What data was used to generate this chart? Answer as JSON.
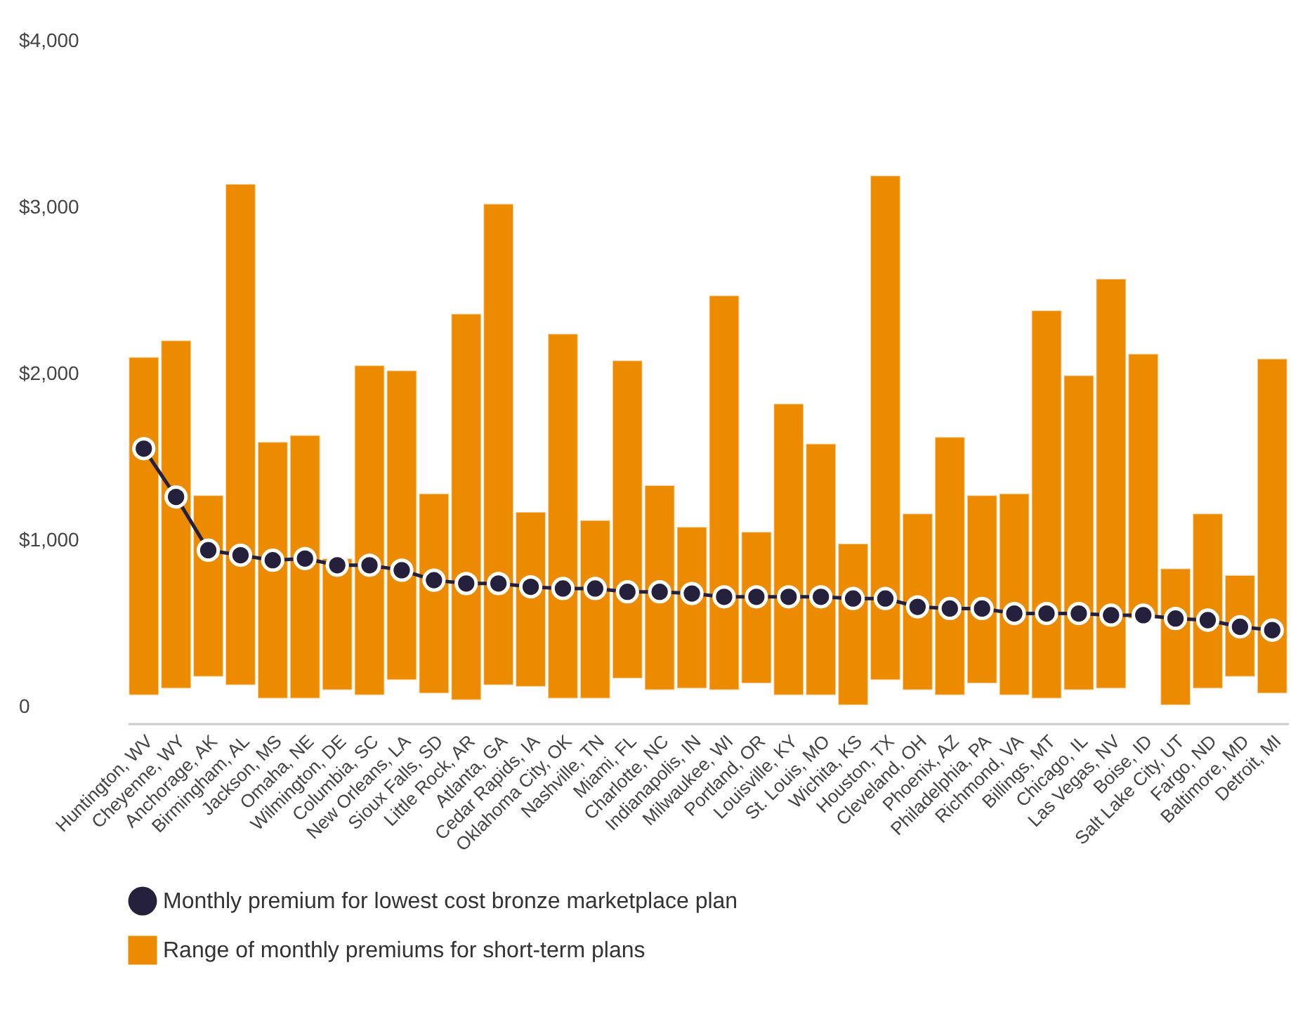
{
  "chart_data": {
    "type": "bar",
    "categories": [
      "Huntington, WV",
      "Cheyenne, WY",
      "Anchorage, AK",
      "Birmingham, AL",
      "Jackson, MS",
      "Omaha, NE",
      "Wilmington, DE",
      "Columbia, SC",
      "New Orleans, LA",
      "Sioux Falls, SD",
      "Little Rock, AR",
      "Atlanta, GA",
      "Cedar Rapids, IA",
      "Oklahoma City, OK",
      "Nashville, TN",
      "Miami, FL",
      "Charlotte, NC",
      "Indianapolis, IN",
      "Milwaukee, WI",
      "Portland, OR",
      "Louisville, KY",
      "St. Louis, MO",
      "Wichita, KS",
      "Houston, TX",
      "Cleveland, OH",
      "Phoenix, AZ",
      "Philadelphia, PA",
      "Richmond, VA",
      "Billings, MT",
      "Chicago, IL",
      "Las Vegas, NV",
      "Boise, ID",
      "Salt Lake City, UT",
      "Fargo, ND",
      "Baltimore, MD",
      "Detroit, MI"
    ],
    "series": [
      {
        "name": "Monthly premium for lowest cost bronze marketplace plan",
        "type": "line",
        "color": "#25213d",
        "values": [
          1550,
          1260,
          940,
          910,
          880,
          890,
          850,
          850,
          820,
          760,
          740,
          740,
          720,
          710,
          710,
          690,
          690,
          680,
          660,
          660,
          660,
          660,
          650,
          650,
          600,
          590,
          590,
          560,
          560,
          560,
          550,
          550,
          530,
          520,
          480,
          460
        ]
      },
      {
        "name": "Range of monthly premiums for short-term plans",
        "color": "#ec8a00",
        "base": [
          70,
          110,
          180,
          130,
          50,
          50,
          100,
          70,
          160,
          80,
          40,
          130,
          120,
          50,
          50,
          170,
          100,
          110,
          100,
          140,
          70,
          70,
          10,
          160,
          100,
          70,
          140,
          70,
          50,
          100,
          110,
          530,
          10,
          110,
          180,
          80
        ],
        "values": [
          2030,
          2090,
          1090,
          3010,
          1540,
          1580,
          790,
          1980,
          1860,
          1200,
          2320,
          2890,
          1050,
          2190,
          1070,
          1910,
          1230,
          970,
          2370,
          910,
          1750,
          1510,
          970,
          3030,
          1060,
          1550,
          1130,
          1210,
          2330,
          1890,
          2460,
          1590,
          820,
          1050,
          610,
          2010
        ]
      }
    ],
    "ylim": [
      -100,
      4000
    ],
    "yticks": [
      0,
      {
        "value": 1000,
        "label": "$1,000"
      },
      {
        "value": 2000,
        "label": "$2,000"
      },
      {
        "value": 3000,
        "label": "$3,000"
      },
      {
        "value": 4000,
        "label": "$4,000"
      }
    ],
    "legend": "bottom",
    "marker": "circle",
    "line_style": "solid"
  }
}
